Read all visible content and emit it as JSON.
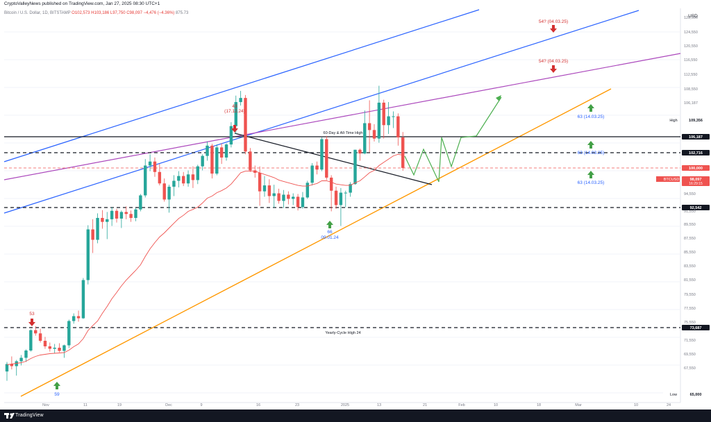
{
  "header": {
    "publisher_line": "CryptoValleyNews published on TradingView.com, Jan 27, 2025 08:30 UTC+1",
    "symbol_line": "Bitcoin / U.S. Dollar, 1D, BITSTAMP",
    "ohlc": "O102,573 H103,186 L97,750 C98,097 −4,476 (−4.36%)",
    "vol": "875.73"
  },
  "footer": {
    "brand": "TradingView"
  },
  "colors": {
    "up": "#26a69a",
    "down": "#ef5350",
    "ema": "#ef5350",
    "blue_channel": "#2962ff",
    "purple": "#ab47bc",
    "orange": "#ff9800",
    "projection": "#4caf50",
    "arrow_up": "#43a047",
    "arrow_down": "#d32f2f",
    "label_blue": "#2962ff",
    "label_red": "#d32f2f"
  },
  "chart_data": {
    "type": "candlestick",
    "currency": "USD",
    "y_ticks": [
      "128,550",
      "124,550",
      "120,550",
      "116,550",
      "112,550",
      "108,550",
      "106,187",
      "102,716",
      "100,000",
      "98,097",
      "96,550",
      "94,550",
      "92,542",
      "91,550",
      "89,550",
      "87,550",
      "85,550",
      "83,550",
      "81,550",
      "79,550",
      "77,550",
      "75,550",
      "73,687",
      "71,550",
      "69,550",
      "67,550",
      "65,000"
    ],
    "y_range": [
      65000,
      131000
    ],
    "x_ticks": [
      "Nov",
      "11",
      "19",
      "Dec",
      "9",
      "16",
      "23",
      "2025",
      "13",
      "21",
      "Feb",
      "10",
      "18",
      "Mar",
      "10",
      "24",
      "Apr"
    ],
    "price_labels": [
      {
        "text": "High",
        "value": "109,356"
      },
      {
        "text": "",
        "value": "106,187"
      },
      {
        "text": "",
        "value": "102,716"
      },
      {
        "text": "",
        "value": "100,000"
      },
      {
        "text": "BTCUSD",
        "value": "98,097",
        "sub": "16:29:15"
      },
      {
        "text": "",
        "value": "92,542"
      },
      {
        "text": "",
        "value": "73,687"
      },
      {
        "text": "Low",
        "value": "65,000"
      }
    ],
    "horizontal_levels": [
      {
        "label": "60-Day & All-Time High",
        "value": 106187,
        "style": "solid"
      },
      {
        "label": "",
        "value": 102716,
        "style": "dashed"
      },
      {
        "label": "",
        "value": 100000,
        "style": "dashed-red"
      },
      {
        "label": "",
        "value": 92542,
        "style": "dashed"
      },
      {
        "label": "Yearly-Cycle High 24",
        "value": 73687,
        "style": "dashed"
      }
    ],
    "annotations": [
      {
        "text": "53",
        "kind": "down"
      },
      {
        "text": "59",
        "kind": "up"
      },
      {
        "text": "43",
        "sub": "(17.12.24)",
        "kind": "down"
      },
      {
        "text": "66",
        "sub": "09.01.24",
        "kind": "up"
      },
      {
        "text": "54? (04.03.25)",
        "kind": "down"
      },
      {
        "text": "54? (04.03.25)",
        "kind": "down"
      },
      {
        "text": "63 (14.03.25)",
        "kind": "up"
      },
      {
        "text": "63 (14.03.25)",
        "kind": "up"
      },
      {
        "text": "63 (14.03.25)",
        "kind": "up"
      }
    ],
    "candles": [
      [
        67200,
        68400,
        66300,
        68100
      ],
      [
        68100,
        69200,
        67400,
        67800
      ],
      [
        67800,
        68700,
        66800,
        68500
      ],
      [
        68500,
        69400,
        67900,
        69000
      ],
      [
        69000,
        70200,
        68400,
        70050
      ],
      [
        70050,
        73400,
        69900,
        73250
      ],
      [
        73250,
        74200,
        72300,
        72700
      ],
      [
        72700,
        73500,
        71200,
        71450
      ],
      [
        71450,
        72100,
        70300,
        70650
      ],
      [
        70650,
        71200,
        69900,
        70300
      ],
      [
        70300,
        71000,
        69600,
        70450
      ],
      [
        70450,
        71100,
        69800,
        70000
      ],
      [
        70000,
        70900,
        69000,
        70800
      ],
      [
        70800,
        75900,
        70400,
        75700
      ],
      [
        75700,
        76800,
        75000,
        76400
      ],
      [
        76400,
        77200,
        75600,
        76100
      ],
      [
        76100,
        81800,
        76000,
        81500
      ],
      [
        81500,
        89400,
        80900,
        88800
      ],
      [
        88800,
        90300,
        85400,
        87300
      ],
      [
        87300,
        91200,
        86800,
        90500
      ],
      [
        90500,
        91800,
        88900,
        89900
      ],
      [
        89900,
        91400,
        87400,
        90300
      ],
      [
        90300,
        92600,
        89300,
        91600
      ],
      [
        91600,
        92200,
        89800,
        90400
      ],
      [
        90400,
        91700,
        89000,
        91400
      ],
      [
        91400,
        92700,
        90300,
        91100
      ],
      [
        91100,
        91700,
        89900,
        90500
      ],
      [
        90500,
        92400,
        90000,
        92000
      ],
      [
        92000,
        94500,
        91500,
        94300
      ],
      [
        94300,
        99200,
        94000,
        98400
      ],
      [
        98400,
        99800,
        97700,
        98900
      ],
      [
        98900,
        99400,
        97000,
        97600
      ],
      [
        97600,
        98600,
        95800,
        96100
      ],
      [
        96100,
        96800,
        93400,
        93700
      ],
      [
        93700,
        95900,
        91300,
        95600
      ],
      [
        95600,
        97200,
        94200,
        96500
      ],
      [
        96500,
        97700,
        95500,
        97100
      ],
      [
        97100,
        97600,
        95700,
        96100
      ],
      [
        96100,
        97800,
        95600,
        97300
      ],
      [
        97300,
        98300,
        95400,
        96600
      ],
      [
        96600,
        98500,
        96000,
        98300
      ],
      [
        98300,
        99800,
        97800,
        99600
      ],
      [
        99600,
        101900,
        99000,
        101200
      ],
      [
        101200,
        101500,
        96800,
        97400
      ],
      [
        97400,
        101400,
        97200,
        100900
      ],
      [
        100900,
        101600,
        98600,
        99400
      ],
      [
        99400,
        101600,
        99000,
        101400
      ],
      [
        101400,
        104200,
        100900,
        103800
      ],
      [
        103800,
        107400,
        103000,
        106300
      ],
      [
        106300,
        108200,
        105900,
        107000
      ],
      [
        107000,
        107500,
        99800,
        100200
      ],
      [
        100200,
        100800,
        97600,
        97800
      ],
      [
        97800,
        98400,
        96900,
        97500
      ],
      [
        97500,
        98300,
        92800,
        94900
      ],
      [
        94900,
        97100,
        94100,
        95800
      ],
      [
        95800,
        96700,
        93200,
        94200
      ],
      [
        94200,
        95900,
        92500,
        94600
      ],
      [
        94600,
        95300,
        93100,
        93500
      ],
      [
        93500,
        95100,
        92400,
        94400
      ],
      [
        94400,
        94900,
        93000,
        93800
      ],
      [
        93800,
        94600,
        92900,
        94100
      ],
      [
        94100,
        94500,
        91700,
        92600
      ],
      [
        92600,
        94800,
        92200,
        94000
      ],
      [
        94000,
        96500,
        93800,
        96200
      ],
      [
        96200,
        98700,
        95800,
        98400
      ],
      [
        98400,
        98900,
        97300,
        97900
      ],
      [
        97900,
        102600,
        97700,
        102300
      ],
      [
        102300,
        102800,
        96600,
        96900
      ],
      [
        96900,
        97200,
        91500,
        95000
      ],
      [
        95000,
        95600,
        92200,
        92900
      ],
      [
        92900,
        95400,
        89300,
        94700
      ],
      [
        94700,
        95000,
        92600,
        94700
      ],
      [
        94700,
        96300,
        94100,
        96000
      ],
      [
        96000,
        100500,
        95900,
        100500
      ],
      [
        100500,
        100700,
        99000,
        99900
      ],
      [
        99900,
        105400,
        99800,
        104100
      ],
      [
        104100,
        106600,
        100100,
        103400
      ],
      [
        103400,
        104000,
        101900,
        102400
      ],
      [
        102400,
        109400,
        101700,
        106200
      ],
      [
        106200,
        106700,
        102400,
        103900
      ],
      [
        103900,
        106300,
        103000,
        104800
      ],
      [
        104800,
        105300,
        103600,
        104800
      ],
      [
        104800,
        105100,
        101200,
        102600
      ],
      [
        102600,
        103200,
        97750,
        98100
      ]
    ],
    "ema": [
      68000,
      68100,
      68200,
      68300,
      68500,
      68900,
      69200,
      69400,
      69500,
      69600,
      69650,
      69700,
      69750,
      70100,
      70600,
      71000,
      71800,
      73200,
      74400,
      75700,
      76800,
      77800,
      78900,
      79800,
      80700,
      81500,
      82200,
      82900,
      83700,
      84900,
      86000,
      86900,
      87700,
      88300,
      89000,
      89700,
      90400,
      90900,
      91500,
      92000,
      92600,
      93200,
      93900,
      94200,
      94700,
      95000,
      95400,
      96000,
      96800,
      97500,
      97700,
      97700,
      97700,
      97500,
      97300,
      97100,
      96900,
      96600,
      96400,
      96200,
      96000,
      95800,
      95700,
      95700,
      95900,
      96100,
      96500,
      96500,
      96300,
      96000,
      95900,
      95800,
      95800,
      96200,
      96500,
      97000,
      97500,
      97800,
      98400,
      98800,
      99200,
      99600,
      99800,
      99700
    ]
  }
}
